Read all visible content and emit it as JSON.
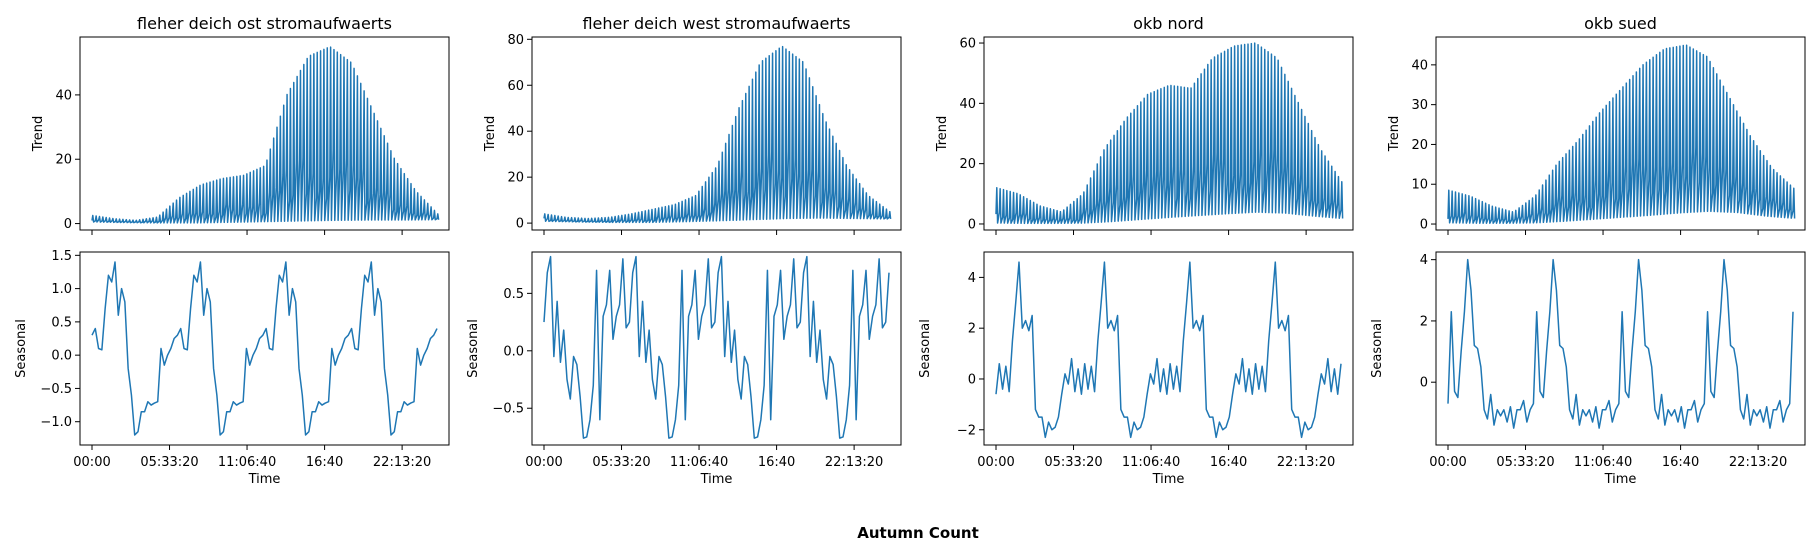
{
  "figure": {
    "suptitle": "Autumn Count"
  },
  "chart_data": [
    {
      "type": "line",
      "subplot": "trend",
      "title": "fleher deich ost stromaufwaerts",
      "xlabel": "",
      "ylabel": "Trend",
      "xticks": [],
      "yticks": [
        "0",
        "20",
        "40"
      ],
      "tick_values": [
        0,
        20,
        40
      ],
      "ylim": [
        -2,
        58
      ],
      "low_envelope": [
        0.5,
        0.3,
        0.2,
        0.2,
        0.4,
        0.6,
        0.8,
        1.0,
        1.1,
        1.1,
        1.2
      ],
      "high_envelope": [
        2.5,
        1.5,
        1.0,
        2.0,
        8.0,
        12.0,
        14.0,
        15.0,
        18.0,
        40.0,
        52.0,
        55.0,
        50.0,
        35.0,
        20.0,
        10.0,
        3.0
      ],
      "color": "#1f77b4"
    },
    {
      "type": "line",
      "subplot": "seasonal",
      "title": "",
      "xlabel": "Time",
      "ylabel": "Seasonal",
      "xticks": [
        "00:00",
        "05:33:20",
        "11:06:40",
        "16:40",
        "22:13:20"
      ],
      "yticks": [
        "−1.0",
        "−0.5",
        "0.0",
        "0.5",
        "1.0",
        "1.5"
      ],
      "tick_values": [
        -1.0,
        -0.5,
        0.0,
        0.5,
        1.0,
        1.5
      ],
      "ylim": [
        -1.35,
        1.55
      ],
      "period_values": [
        0.3,
        0.4,
        0.1,
        0.08,
        0.7,
        1.2,
        1.1,
        1.4,
        0.6,
        1.0,
        0.8,
        -0.2,
        -0.6,
        -1.2,
        -1.15,
        -0.85,
        -0.85,
        -0.7,
        -0.75,
        -0.72,
        -0.7,
        0.1,
        -0.15,
        0.0,
        0.1,
        0.25
      ],
      "color": "#1f77b4"
    },
    {
      "type": "line",
      "subplot": "trend",
      "title": "fleher deich west stromaufwaerts",
      "xlabel": "",
      "ylabel": "Trend",
      "xticks": [],
      "yticks": [
        "0",
        "20",
        "40",
        "60",
        "80"
      ],
      "tick_values": [
        0,
        20,
        40,
        60,
        80
      ],
      "ylim": [
        -3,
        81
      ],
      "low_envelope": [
        0.8,
        0.5,
        0.3,
        0.3,
        0.6,
        1.0,
        1.5,
        2.0,
        2.2,
        2.0,
        1.8
      ],
      "high_envelope": [
        4.0,
        2.5,
        2.0,
        2.5,
        4.0,
        6.0,
        8.0,
        12.0,
        25.0,
        50.0,
        70.0,
        77.0,
        70.0,
        45.0,
        25.0,
        12.0,
        5.0
      ],
      "color": "#1f77b4"
    },
    {
      "type": "line",
      "subplot": "seasonal",
      "title": "",
      "xlabel": "Time",
      "ylabel": "Seasonal",
      "xticks": [
        "00:00",
        "05:33:20",
        "11:06:40",
        "16:40",
        "22:13:20"
      ],
      "yticks": [
        "−0.5",
        "0.0",
        "0.5"
      ],
      "tick_values": [
        -0.5,
        0.0,
        0.5
      ],
      "ylim": [
        -0.82,
        0.86
      ],
      "period_values": [
        0.25,
        0.68,
        0.82,
        -0.05,
        0.43,
        -0.1,
        0.18,
        -0.25,
        -0.42,
        -0.05,
        -0.12,
        -0.4,
        -0.76,
        -0.75,
        -0.6,
        -0.3,
        0.7,
        -0.6,
        0.3,
        0.4,
        0.7,
        0.1,
        0.3,
        0.4,
        0.8,
        0.2
      ],
      "color": "#1f77b4"
    },
    {
      "type": "line",
      "subplot": "trend",
      "title": "okb nord",
      "xlabel": "",
      "ylabel": "Trend",
      "xticks": [],
      "yticks": [
        "0",
        "20",
        "40",
        "60"
      ],
      "tick_values": [
        0,
        20,
        40,
        60
      ],
      "ylim": [
        -2,
        62
      ],
      "low_envelope": [
        0.3,
        0.2,
        0.2,
        0.3,
        0.8,
        1.5,
        2.2,
        2.8,
        3.4,
        3.9,
        3.6,
        2.6,
        1.8
      ],
      "high_envelope": [
        12.0,
        10.0,
        6.0,
        4.0,
        10.0,
        25.0,
        35.0,
        43.0,
        46.0,
        45.0,
        55.0,
        59.0,
        60.0,
        55.0,
        40.0,
        25.0,
        14.0
      ],
      "color": "#1f77b4"
    },
    {
      "type": "line",
      "subplot": "seasonal",
      "title": "",
      "xlabel": "Time",
      "ylabel": "Seasonal",
      "xticks": [
        "00:00",
        "05:33:20",
        "11:06:40",
        "16:40",
        "22:13:20"
      ],
      "yticks": [
        "−2",
        "0",
        "2",
        "4"
      ],
      "tick_values": [
        -2,
        0,
        2,
        4
      ],
      "ylim": [
        -2.6,
        5.0
      ],
      "period_values": [
        -0.6,
        0.6,
        -0.4,
        0.5,
        -0.5,
        1.5,
        3.0,
        4.6,
        2.0,
        2.3,
        1.9,
        2.5,
        -1.2,
        -1.5,
        -1.5,
        -2.3,
        -1.7,
        -2.0,
        -1.9,
        -1.5,
        -0.6,
        0.2,
        -0.2,
        0.8,
        -0.5,
        0.4
      ],
      "color": "#1f77b4"
    },
    {
      "type": "line",
      "subplot": "trend",
      "title": "okb sued",
      "xlabel": "",
      "ylabel": "Trend",
      "xticks": [],
      "yticks": [
        "0",
        "10",
        "20",
        "30",
        "40"
      ],
      "tick_values": [
        0,
        10,
        20,
        30,
        40
      ],
      "ylim": [
        -1.5,
        47
      ],
      "low_envelope": [
        0.3,
        0.2,
        0.2,
        0.3,
        0.7,
        1.2,
        1.7,
        2.2,
        2.8,
        3.2,
        2.9,
        2.0,
        1.4
      ],
      "high_envelope": [
        8.5,
        7.0,
        4.5,
        3.0,
        7.0,
        15.0,
        21.0,
        28.0,
        34.0,
        40.0,
        44.0,
        45.0,
        42.0,
        32.0,
        22.0,
        14.0,
        9.0
      ],
      "color": "#1f77b4"
    },
    {
      "type": "line",
      "subplot": "seasonal",
      "title": "",
      "xlabel": "Time",
      "ylabel": "Seasonal",
      "xticks": [
        "00:00",
        "05:33:20",
        "11:06:40",
        "16:40",
        "22:13:20"
      ],
      "yticks": [
        "0",
        "2",
        "4"
      ],
      "tick_values": [
        0,
        2,
        4
      ],
      "ylim": [
        -2.05,
        4.25
      ],
      "period_values": [
        -0.7,
        2.3,
        -0.3,
        -0.5,
        1.0,
        2.3,
        4.0,
        3.0,
        1.2,
        1.1,
        0.5,
        -0.9,
        -1.2,
        -0.4,
        -1.4,
        -0.9,
        -1.1,
        -0.9,
        -1.3,
        -0.8,
        -1.5,
        -0.9,
        -0.9,
        -0.6,
        -1.3,
        -0.9
      ],
      "color": "#1f77b4"
    }
  ]
}
